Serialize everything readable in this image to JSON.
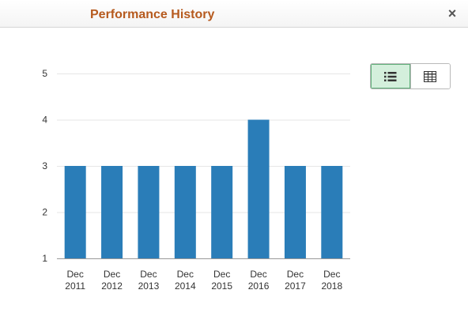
{
  "dialog": {
    "title": "Performance History",
    "close_glyph": "×"
  },
  "view_toggle": {
    "options": [
      {
        "name": "chart-view",
        "icon": "list-icon",
        "active": true
      },
      {
        "name": "table-view",
        "icon": "grid-icon",
        "active": false
      }
    ],
    "active_color": "#d4efdc"
  },
  "chart_data": {
    "type": "bar",
    "categories": [
      [
        "Dec",
        "2011"
      ],
      [
        "Dec",
        "2012"
      ],
      [
        "Dec",
        "2013"
      ],
      [
        "Dec",
        "2014"
      ],
      [
        "Dec",
        "2015"
      ],
      [
        "Dec",
        "2016"
      ],
      [
        "Dec",
        "2017"
      ],
      [
        "Dec",
        "2018"
      ]
    ],
    "values": [
      3,
      3,
      3,
      3,
      3,
      4,
      3,
      3
    ],
    "ylim": [
      1,
      5
    ],
    "yticks": [
      1,
      2,
      3,
      4,
      5
    ],
    "bar_color": "#2a7db8",
    "grid": true
  }
}
